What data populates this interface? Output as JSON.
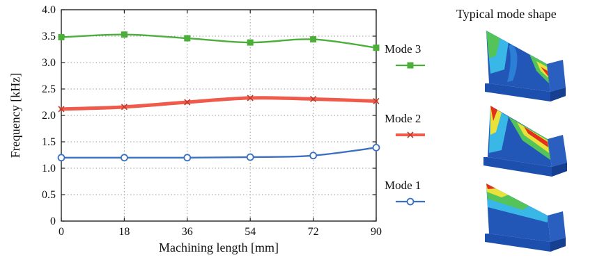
{
  "colors": {
    "mode1": "#3a6fc4",
    "mode2": "#ef5a4a",
    "mode3": "#4caf3a",
    "fe_blue": "#2257b8",
    "fe_cyan": "#39b7e6",
    "fe_green": "#53c35a",
    "fe_yellow": "#e8e23a",
    "fe_red": "#e3301e"
  },
  "chart_data": {
    "type": "line",
    "xlabel": "Machining length [mm]",
    "ylabel": "Frequency [kHz]",
    "xlim": [
      0,
      90
    ],
    "ylim": [
      0,
      4.0
    ],
    "xticks": [
      0,
      18,
      36,
      54,
      72,
      90
    ],
    "yticks": [
      0,
      0.5,
      1.0,
      1.5,
      2.0,
      2.5,
      3.0,
      3.5,
      4.0
    ],
    "ytick_labels": [
      "0",
      "0.5",
      "1.0",
      "1.5",
      "2.0",
      "2.5",
      "3.0",
      "3.5",
      "4.0"
    ],
    "grid": true,
    "legend_placement": "right",
    "x": [
      0,
      18,
      36,
      54,
      72,
      90
    ],
    "series": [
      {
        "name": "Mode 3",
        "values": [
          3.48,
          3.53,
          3.46,
          3.38,
          3.44,
          3.28
        ],
        "marker": "square",
        "color_key": "mode3"
      },
      {
        "name": "Mode 2",
        "values": [
          2.12,
          2.16,
          2.25,
          2.33,
          2.31,
          2.27
        ],
        "marker": "cross",
        "color_key": "mode2"
      },
      {
        "name": "Mode 1",
        "values": [
          1.2,
          1.2,
          1.2,
          1.21,
          1.24,
          1.39
        ],
        "marker": "circle",
        "color_key": "mode1"
      }
    ]
  },
  "panel": {
    "title": "Typical mode shape",
    "shapes": [
      {
        "icon": "mode-shape-3-icon"
      },
      {
        "icon": "mode-shape-2-icon"
      },
      {
        "icon": "mode-shape-1-icon"
      }
    ]
  }
}
